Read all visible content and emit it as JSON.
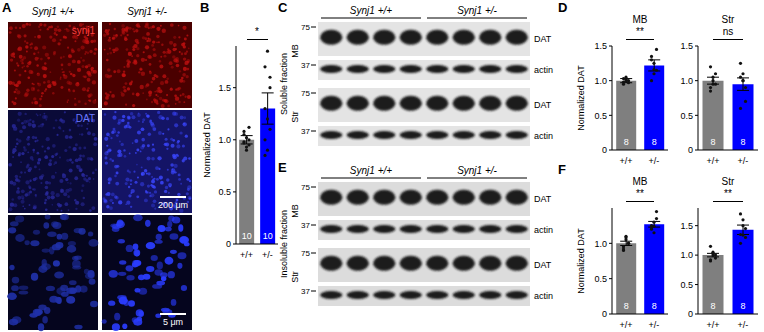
{
  "panel_labels": [
    "A",
    "B",
    "C",
    "D",
    "E",
    "F"
  ],
  "images": {
    "genotypes": [
      "Synj1 +/+",
      "Synj1 +/-"
    ],
    "rows": [
      {
        "stain": "synj1"
      },
      {
        "stain": "DAT",
        "scale_bar": "200 μm"
      },
      {
        "scale_bar": "5 μm"
      }
    ]
  },
  "blots": [
    {
      "fraction": "Soluble fraction",
      "genotypes": [
        "Synj1 +/+",
        "Synj1 +/-"
      ],
      "regions": [
        {
          "name": "MB",
          "bands": [
            {
              "protein": "DAT",
              "marker": 75
            },
            {
              "protein": "actin",
              "marker": 37
            }
          ]
        },
        {
          "name": "Str",
          "bands": [
            {
              "protein": "DAT",
              "marker": 75
            },
            {
              "protein": "actin",
              "marker": 37
            }
          ]
        }
      ]
    },
    {
      "fraction": "Insoluble fraction",
      "genotypes": [
        "Synj1 +/+",
        "Synj1 +/-"
      ],
      "regions": [
        {
          "name": "MB",
          "bands": [
            {
              "protein": "DAT",
              "marker": 75
            },
            {
              "protein": "actin",
              "marker": 37
            }
          ]
        },
        {
          "name": "Str",
          "bands": [
            {
              "protein": "DAT",
              "marker": 75
            },
            {
              "protein": "actin",
              "marker": 37
            }
          ]
        }
      ]
    }
  ],
  "chart_data": [
    {
      "type": "bar",
      "y_label": "Normalized DAT",
      "categories": [
        "+/+",
        "+/-"
      ],
      "values": [
        1.0,
        1.3
      ],
      "errors": [
        0.04,
        0.15
      ],
      "n": [
        10,
        10
      ],
      "colors": [
        "#7f7f7f",
        "#0000ff"
      ],
      "points": [
        [
          0.98,
          1.02,
          0.95,
          1.05,
          0.9,
          1.0,
          1.08,
          0.93,
          1.12,
          0.97
        ],
        [
          1.0,
          1.2,
          1.5,
          1.7,
          0.9,
          1.1,
          1.3,
          1.85,
          1.6,
          0.85
        ]
      ],
      "significance": "*",
      "ylim": [
        0,
        1.9
      ],
      "yticks": [
        0,
        0.5,
        {
          "value": 1,
          "label": "1.0"
        },
        {
          "value": 1.5,
          "label": "1.5"
        }
      ]
    },
    {
      "type": "bar",
      "title": "MB",
      "y_label": "Normalized DAT",
      "categories": [
        "+/+",
        "+/-"
      ],
      "values": [
        1.0,
        1.22
      ],
      "errors": [
        0.03,
        0.08
      ],
      "n": [
        8,
        8
      ],
      "colors": [
        "#7f7f7f",
        "#0000ff"
      ],
      "points": [
        [
          0.95,
          1.02,
          1.0,
          0.98,
          1.05,
          0.97,
          1.03,
          1.0
        ],
        [
          1.0,
          1.1,
          1.45,
          1.3,
          1.25,
          1.15,
          1.35,
          1.16
        ]
      ],
      "significance": "**",
      "ylim": [
        0,
        1.5
      ],
      "yticks": [
        0,
        0.5,
        {
          "value": 1,
          "label": "1.0"
        },
        {
          "value": 1.5,
          "label": "1.5"
        }
      ]
    },
    {
      "type": "bar",
      "title": "Str",
      "categories": [
        "+/+",
        "+/-"
      ],
      "values": [
        1.0,
        0.95
      ],
      "errors": [
        0.05,
        0.09
      ],
      "n": [
        8,
        8
      ],
      "colors": [
        "#7f7f7f",
        "#0000ff"
      ],
      "points": [
        [
          1.2,
          1.05,
          0.95,
          0.9,
          1.0,
          1.1,
          0.85,
          0.95
        ],
        [
          1.25,
          1.1,
          0.7,
          0.6,
          1.0,
          0.9,
          1.05,
          1.0
        ]
      ],
      "significance": "ns",
      "ylim": [
        0,
        1.5
      ],
      "yticks": [
        0,
        0.5,
        {
          "value": 1,
          "label": "1.0"
        },
        {
          "value": 1.5,
          "label": "1.5"
        }
      ]
    },
    {
      "type": "bar",
      "title": "MB",
      "y_label": "Normalized DAT",
      "categories": [
        "+/+",
        "+/-"
      ],
      "values": [
        1.0,
        1.27
      ],
      "errors": [
        0.03,
        0.04
      ],
      "n": [
        8,
        8
      ],
      "colors": [
        "#7f7f7f",
        "#0000ff"
      ],
      "points": [
        [
          0.9,
          1.05,
          1.0,
          0.95,
          1.1,
          1.0,
          0.92,
          1.08
        ],
        [
          1.2,
          1.3,
          1.45,
          1.25,
          1.15,
          1.35,
          1.22,
          1.24
        ]
      ],
      "significance": "**",
      "ylim": [
        0,
        1.5
      ],
      "yticks": [
        0,
        0.5,
        {
          "value": 1,
          "label": "1.0"
        }
      ]
    },
    {
      "type": "bar",
      "title": "Str",
      "categories": [
        "+/+",
        "+/-"
      ],
      "values": [
        1.0,
        1.43
      ],
      "errors": [
        0.03,
        0.08
      ],
      "n": [
        8,
        8
      ],
      "colors": [
        "#7f7f7f",
        "#0000ff"
      ],
      "points": [
        [
          1.15,
          1.0,
          0.95,
          0.9,
          1.05,
          1.0,
          0.92,
          1.03
        ],
        [
          1.7,
          1.6,
          1.3,
          1.2,
          1.5,
          1.45,
          1.35,
          1.34
        ]
      ],
      "significance": "**",
      "ylim": [
        0,
        1.8
      ],
      "yticks": [
        0,
        0.5,
        {
          "value": 1,
          "label": "1.0"
        },
        {
          "value": 1.5,
          "label": "1.5"
        }
      ]
    }
  ]
}
